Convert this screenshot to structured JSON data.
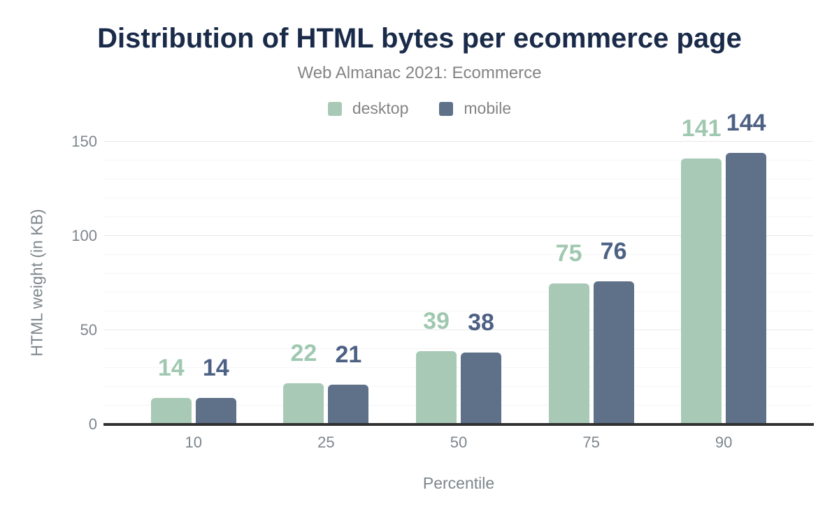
{
  "header": {
    "title": "Distribution of HTML bytes per ecommerce page",
    "subtitle": "Web Almanac 2021: Ecommerce"
  },
  "legend": {
    "items": [
      {
        "label": "desktop",
        "color": "#a8c9b6"
      },
      {
        "label": "mobile",
        "color": "#5f7089"
      }
    ]
  },
  "chart_data": {
    "type": "bar",
    "title": "Distribution of HTML bytes per ecommerce page",
    "subtitle": "Web Almanac 2021: Ecommerce",
    "categories": [
      "10",
      "25",
      "50",
      "75",
      "90"
    ],
    "series": [
      {
        "name": "desktop",
        "values": [
          14,
          22,
          39,
          75,
          141
        ],
        "color": "#a8c9b6",
        "label_color": "#a0c8b0"
      },
      {
        "name": "mobile",
        "values": [
          14,
          21,
          38,
          76,
          144
        ],
        "color": "#5f7089",
        "label_color": "#4d6185"
      }
    ],
    "xlabel": "Percentile",
    "ylabel": "HTML weight (in KB)",
    "ylim": [
      0,
      150
    ],
    "yticks": [
      0,
      50,
      100,
      150
    ],
    "minor_gridline_step": 10,
    "major_gridline_step": 50,
    "grid": true,
    "legend_position": "top",
    "bar_value_labels": true
  },
  "colors": {
    "background": "#ffffff",
    "title_text": "#1a2b49",
    "subtitle_text": "#848484",
    "axis_text": "#7d868c",
    "axis_line": "#303030",
    "major_gridline": "#e8e8e8",
    "minor_gridline": "#f5f5f5"
  }
}
